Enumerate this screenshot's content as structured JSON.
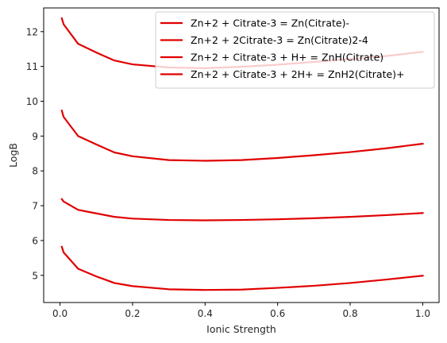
{
  "chart_data": {
    "type": "line",
    "xlabel": "Ionic Strength",
    "ylabel": "LogB",
    "xlim": [
      -0.045,
      1.045
    ],
    "ylim": [
      4.22,
      12.68
    ],
    "xticks": [
      0.0,
      0.2,
      0.4,
      0.6,
      0.8,
      1.0
    ],
    "xtick_labels": [
      "0.0",
      "0.2",
      "0.4",
      "0.6",
      "0.8",
      "1.0"
    ],
    "yticks": [
      5,
      6,
      7,
      8,
      9,
      10,
      11,
      12
    ],
    "ytick_labels": [
      "5",
      "6",
      "7",
      "8",
      "9",
      "10",
      "11",
      "12"
    ],
    "grid": false,
    "legend_position": "top-right",
    "line_color": "#e00000",
    "x": [
      0.005,
      0.01,
      0.05,
      0.1,
      0.15,
      0.2,
      0.3,
      0.4,
      0.5,
      0.6,
      0.7,
      0.8,
      0.9,
      1.0
    ],
    "series": [
      {
        "name": "Zn+2 + Citrate-3 = Zn(Citrate)-",
        "values": [
          12.38,
          12.21,
          11.65,
          11.4,
          11.17,
          11.06,
          10.97,
          10.95,
          10.99,
          11.05,
          11.13,
          11.21,
          11.3,
          11.42
        ]
      },
      {
        "name": "Zn+2 + 2Citrate-3 = Zn(Citrate)2-4",
        "values": [
          9.73,
          9.55,
          9.0,
          8.76,
          8.53,
          8.42,
          8.31,
          8.29,
          8.31,
          8.37,
          8.45,
          8.54,
          8.65,
          8.78
        ]
      },
      {
        "name": "Zn+2 + Citrate-3 + H+ = ZnH(Citrate)",
        "values": [
          7.19,
          7.12,
          6.88,
          6.78,
          6.68,
          6.63,
          6.59,
          6.58,
          6.59,
          6.61,
          6.64,
          6.68,
          6.73,
          6.79
        ]
      },
      {
        "name": "Zn+2 + Citrate-3 + 2H+ = ZnH2(Citrate)+",
        "values": [
          5.82,
          5.66,
          5.19,
          4.97,
          4.78,
          4.69,
          4.6,
          4.58,
          4.59,
          4.64,
          4.7,
          4.78,
          4.88,
          4.99
        ]
      }
    ]
  }
}
